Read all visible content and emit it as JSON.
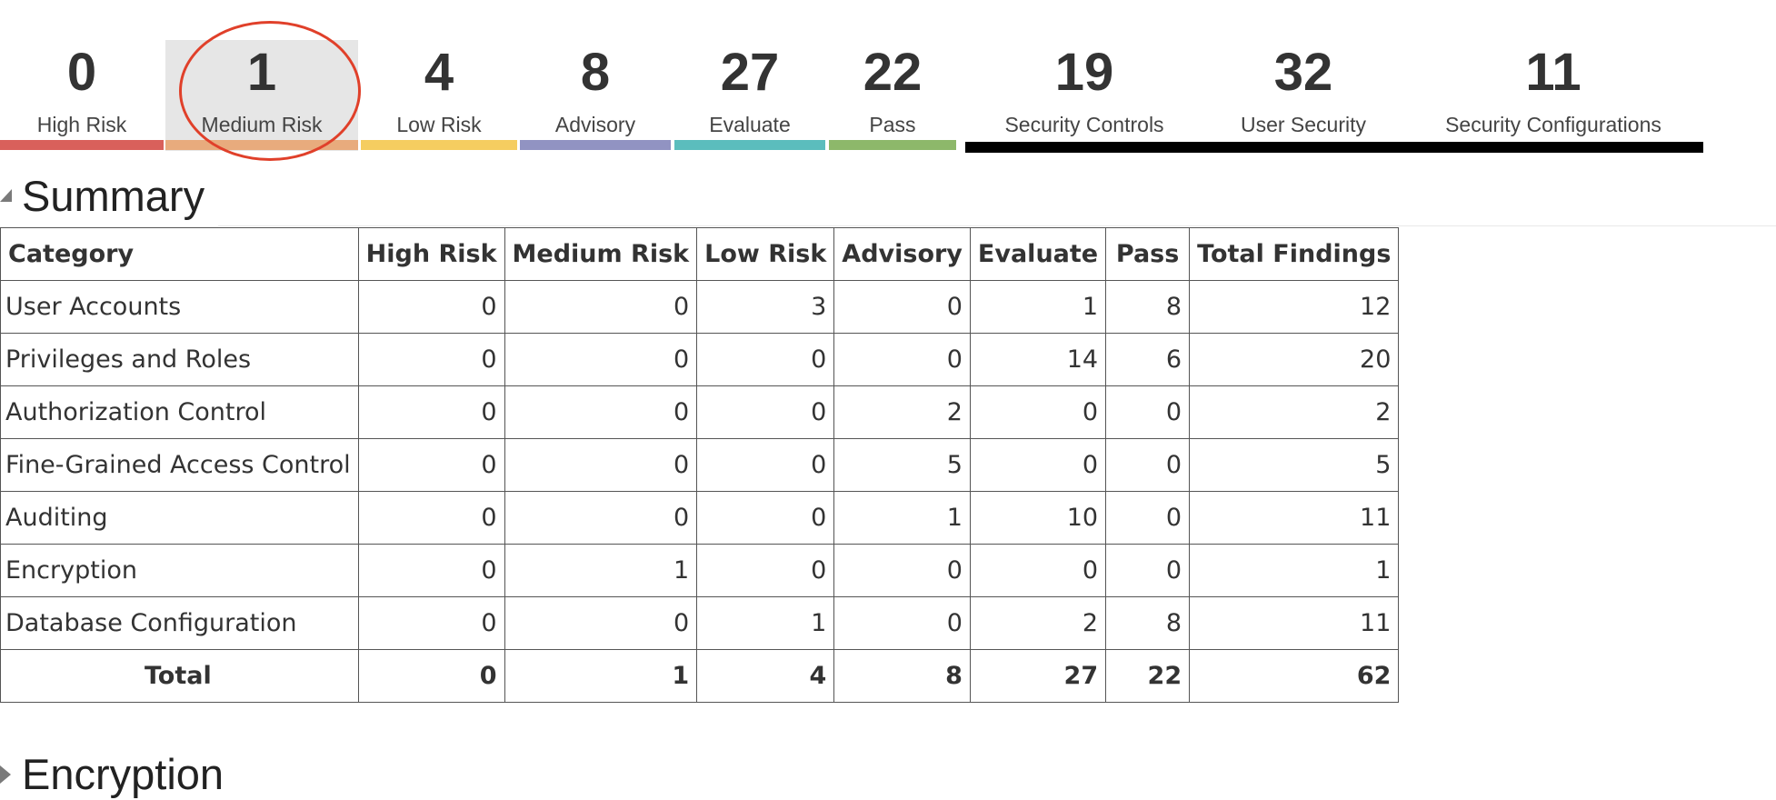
{
  "risk_stats": [
    {
      "value": "0",
      "label": "High Risk",
      "color": "#d9605b"
    },
    {
      "value": "1",
      "label": "Medium Risk",
      "color": "#e8ab7d",
      "selected": true
    },
    {
      "value": "4",
      "label": "Low Risk",
      "color": "#f5cd60"
    },
    {
      "value": "8",
      "label": "Advisory",
      "color": "#9193c2"
    },
    {
      "value": "27",
      "label": "Evaluate",
      "color": "#5bbdbd"
    },
    {
      "value": "22",
      "label": "Pass",
      "color": "#8db86a"
    }
  ],
  "group_stats": [
    {
      "value": "19",
      "label": "Security Controls"
    },
    {
      "value": "32",
      "label": "User Security"
    },
    {
      "value": "11",
      "label": "Security Configurations"
    }
  ],
  "group_bar_color": "#000000",
  "highlight_color": "#e0402a",
  "summary": {
    "title": "Summary",
    "columns": [
      "Category",
      "High Risk",
      "Medium Risk",
      "Low Risk",
      "Advisory",
      "Evaluate",
      "Pass",
      "Total Findings"
    ],
    "rows": [
      {
        "category": "User Accounts",
        "values": [
          "0",
          "0",
          "3",
          "0",
          "1",
          "8",
          "12"
        ]
      },
      {
        "category": "Privileges and Roles",
        "values": [
          "0",
          "0",
          "0",
          "0",
          "14",
          "6",
          "20"
        ]
      },
      {
        "category": "Authorization Control",
        "values": [
          "0",
          "0",
          "0",
          "2",
          "0",
          "0",
          "2"
        ]
      },
      {
        "category": "Fine-Grained Access Control",
        "values": [
          "0",
          "0",
          "0",
          "5",
          "0",
          "0",
          "5"
        ]
      },
      {
        "category": "Auditing",
        "values": [
          "0",
          "0",
          "0",
          "1",
          "10",
          "0",
          "11"
        ]
      },
      {
        "category": "Encryption",
        "values": [
          "0",
          "1",
          "0",
          "0",
          "0",
          "0",
          "1"
        ]
      },
      {
        "category": "Database Configuration",
        "values": [
          "0",
          "0",
          "1",
          "0",
          "2",
          "8",
          "11"
        ]
      }
    ],
    "total": {
      "label": "Total",
      "values": [
        "0",
        "1",
        "4",
        "8",
        "27",
        "22",
        "62"
      ]
    }
  },
  "encryption_section": {
    "title": "Encryption"
  }
}
